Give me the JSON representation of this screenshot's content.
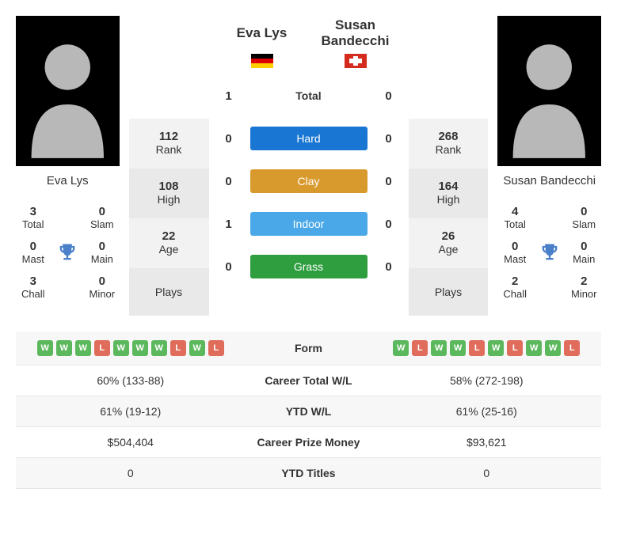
{
  "player1": {
    "name": "Eva Lys",
    "flag": "de",
    "rank": 112,
    "high": 108,
    "age": 22,
    "titles": {
      "total": 3,
      "slam": 0,
      "mast": 0,
      "main": 0,
      "chall": 3,
      "minor": 0
    },
    "form": [
      "W",
      "W",
      "W",
      "L",
      "W",
      "W",
      "W",
      "L",
      "W",
      "L"
    ],
    "career_wl": "60% (133-88)",
    "ytd_wl": "61% (19-12)",
    "prize": "$504,404",
    "ytd_titles": 0
  },
  "player2": {
    "name": "Susan Bandecchi",
    "flag": "ch",
    "rank": 268,
    "high": 164,
    "age": 26,
    "titles": {
      "total": 4,
      "slam": 0,
      "mast": 0,
      "main": 0,
      "chall": 2,
      "minor": 2
    },
    "form": [
      "W",
      "L",
      "W",
      "W",
      "L",
      "W",
      "L",
      "W",
      "W",
      "L"
    ],
    "career_wl": "58% (272-198)",
    "ytd_wl": "61% (25-16)",
    "prize": "$93,621",
    "ytd_titles": 0
  },
  "h2h": {
    "total": {
      "p1": 1,
      "p2": 0
    },
    "hard": {
      "p1": 0,
      "p2": 0
    },
    "clay": {
      "p1": 0,
      "p2": 0
    },
    "indoor": {
      "p1": 1,
      "p2": 0
    },
    "grass": {
      "p1": 0,
      "p2": 0
    }
  },
  "labels": {
    "rank": "Rank",
    "high": "High",
    "age": "Age",
    "plays": "Plays",
    "total": "Total",
    "slam": "Slam",
    "mast": "Mast",
    "main": "Main",
    "chall": "Chall",
    "minor": "Minor",
    "surf_total": "Total",
    "surf_hard": "Hard",
    "surf_clay": "Clay",
    "surf_indoor": "Indoor",
    "surf_grass": "Grass",
    "form": "Form",
    "career_wl": "Career Total W/L",
    "ytd_wl": "YTD W/L",
    "prize": "Career Prize Money",
    "ytd_titles": "YTD Titles"
  },
  "colors": {
    "hard": "#1976d2",
    "clay": "#d89a2c",
    "indoor": "#4aa8e8",
    "grass": "#2e9e3f",
    "win": "#5cb85c",
    "loss": "#e06c5c",
    "trophy": "#4a7fc9"
  }
}
